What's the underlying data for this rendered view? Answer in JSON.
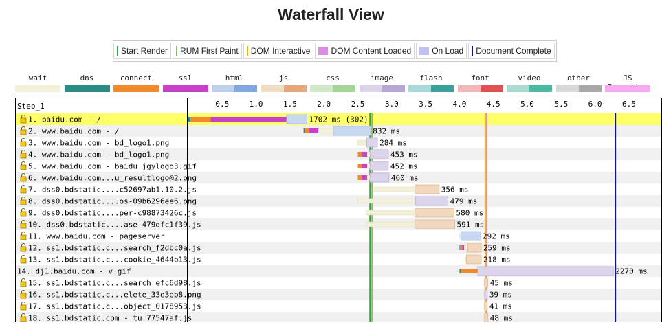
{
  "title": "Waterfall View",
  "milestone_legend": [
    {
      "label": "Start Render",
      "color": "#28a745",
      "shape": "line"
    },
    {
      "label": "RUM First Paint",
      "color": "#8fbc5f",
      "shape": "line"
    },
    {
      "label": "DOM Interactive",
      "color": "#f0b400",
      "shape": "line"
    },
    {
      "label": "DOM Content Loaded",
      "color": "#d98ee0",
      "shape": "box"
    },
    {
      "label": "On Load",
      "color": "#c0c0f5",
      "shape": "box"
    },
    {
      "label": "Document Complete",
      "color": "#1010a0",
      "shape": "line"
    }
  ],
  "type_legend": [
    {
      "label": "wait",
      "colors": [
        "#f2f0d8"
      ]
    },
    {
      "label": "dns",
      "colors": [
        "#2f8a88"
      ]
    },
    {
      "label": "connect",
      "colors": [
        "#f08a2c"
      ]
    },
    {
      "label": "ssl",
      "colors": [
        "#c842c8"
      ]
    },
    {
      "label": "html",
      "colors": [
        "#bcd0ee",
        "#7fa8e0"
      ]
    },
    {
      "label": "js",
      "colors": [
        "#f3dcc4",
        "#e6a878"
      ]
    },
    {
      "label": "css",
      "colors": [
        "#cfe8c6",
        "#a6d59a"
      ]
    },
    {
      "label": "image",
      "colors": [
        "#dcd4ea",
        "#b8a6d6"
      ]
    },
    {
      "label": "flash",
      "colors": [
        "#a8d8d8",
        "#3e9e9c"
      ]
    },
    {
      "label": "font",
      "colors": [
        "#f0b8b8",
        "#e05050"
      ]
    },
    {
      "label": "video",
      "colors": [
        "#a8dcd0",
        "#4cb8a0"
      ]
    },
    {
      "label": "other",
      "colors": [
        "#d8d8d8",
        "#a8a8a8"
      ]
    },
    {
      "label": "JS Execution",
      "colors": [
        "#f7a9f2"
      ]
    }
  ],
  "chart_data": {
    "type": "waterfall",
    "step_label": "Step_1",
    "x_unit": "s",
    "xlim": [
      0,
      6.95
    ],
    "x_ticks": [
      0.5,
      1.0,
      1.5,
      2.0,
      2.5,
      3.0,
      3.5,
      4.0,
      4.5,
      5.0,
      5.5,
      6.0,
      6.5
    ],
    "milestones": {
      "start_render": 2.68,
      "rum_first_paint": 2.71,
      "dom_interactive": 4.38,
      "dom_content_loaded": 4.4,
      "document_complete": 6.3
    },
    "requests": [
      {
        "label": "1. baidu.com - /",
        "lock": true,
        "highlight": true,
        "start": 0.0,
        "dns": 0.03,
        "connect": 0.3,
        "ssl": 1.12,
        "wait": 0.0,
        "download": 0.3,
        "kind": "html",
        "duration": "1702 ms (302)"
      },
      {
        "label": "2. www.baidu.com - /",
        "lock": true,
        "highlight": false,
        "start": 1.7,
        "dns": 0.02,
        "connect": 0.06,
        "ssl": 0.14,
        "wait": 0.22,
        "download": 0.55,
        "kind": "html",
        "duration": "832 ms"
      },
      {
        "label": "3. www.baidu.com - bd_logo1.png",
        "lock": true,
        "highlight": false,
        "start": 2.5,
        "dns": 0,
        "connect": 0,
        "ssl": 0,
        "wait": 0.13,
        "download": 0.16,
        "kind": "image",
        "duration": "284 ms"
      },
      {
        "label": "4. www.baidu.com - bd_logo1.png",
        "lock": true,
        "highlight": false,
        "start": 2.5,
        "dns": 0,
        "connect": 0.06,
        "ssl": 0.08,
        "wait": 0.04,
        "download": 0.27,
        "kind": "image",
        "duration": "453 ms"
      },
      {
        "label": "5. www.baidu.com - baidu_jgylogo3.gif",
        "lock": true,
        "highlight": false,
        "start": 2.5,
        "dns": 0,
        "connect": 0.06,
        "ssl": 0.08,
        "wait": 0.04,
        "download": 0.27,
        "kind": "image",
        "duration": "452 ms"
      },
      {
        "label": "6. www.baidu.com...u_resultlogo@2.png",
        "lock": true,
        "highlight": false,
        "start": 2.5,
        "dns": 0,
        "connect": 0.06,
        "ssl": 0.08,
        "wait": 0.04,
        "download": 0.28,
        "kind": "image",
        "duration": "460 ms"
      },
      {
        "label": "7. dss0.bdstatic....c52697ab1.10.2.js",
        "lock": true,
        "highlight": false,
        "start": 2.72,
        "dns": 0,
        "connect": 0,
        "ssl": 0,
        "wait": 0.62,
        "download": 0.36,
        "kind": "js",
        "duration": "356 ms"
      },
      {
        "label": "8. dss0.bdstatic....os-09b6296ee6.png",
        "lock": true,
        "highlight": false,
        "start": 2.5,
        "dns": 0,
        "connect": 0,
        "ssl": 0,
        "wait": 0.85,
        "download": 0.48,
        "kind": "image",
        "duration": "479 ms"
      },
      {
        "label": "9. dss0.bdstatic....per-c98873426c.js",
        "lock": true,
        "highlight": false,
        "start": 2.62,
        "dns": 0,
        "connect": 0,
        "ssl": 0,
        "wait": 0.72,
        "download": 0.58,
        "kind": "js",
        "duration": "580 ms"
      },
      {
        "label": "10. dss0.bdstatic....ase-479dfc1f39.js",
        "lock": true,
        "highlight": false,
        "start": 2.62,
        "dns": 0,
        "connect": 0,
        "ssl": 0,
        "wait": 0.72,
        "download": 0.59,
        "kind": "js",
        "duration": "591 ms"
      },
      {
        "label": "11. www.baidu.com - pageserver",
        "lock": true,
        "highlight": false,
        "start": 4.0,
        "dns": 0,
        "connect": 0,
        "ssl": 0,
        "wait": 0.02,
        "download": 0.29,
        "kind": "html",
        "duration": "292 ms"
      },
      {
        "label": "12. ss1.bdstatic.c...search_f2dbc0a.js",
        "lock": true,
        "highlight": false,
        "start": 4.0,
        "dns": 0.01,
        "connect": 0.03,
        "ssl": 0.03,
        "wait": 0.05,
        "download": 0.2,
        "kind": "js",
        "duration": "259 ms"
      },
      {
        "label": "13. ss1.bdstatic.c...cookie_4644b13.js",
        "lock": true,
        "highlight": false,
        "start": 4.08,
        "dns": 0,
        "connect": 0,
        "ssl": 0,
        "wait": 0.02,
        "download": 0.22,
        "kind": "js",
        "duration": "218 ms"
      },
      {
        "label": "14. dj1.baidu.com - v.gif",
        "lock": false,
        "highlight": false,
        "start": 4.0,
        "dns": 0.02,
        "connect": 0.25,
        "ssl": 0,
        "wait": 0.0,
        "download": 2.0,
        "kind": "image",
        "duration": "2270 ms"
      },
      {
        "label": "15. ss1.bdstatic.c...search_efc6d98.js",
        "lock": true,
        "highlight": false,
        "start": 4.36,
        "dns": 0,
        "connect": 0,
        "ssl": 0,
        "wait": 0.01,
        "download": 0.05,
        "kind": "js",
        "duration": "45 ms"
      },
      {
        "label": "16. ss1.bdstatic.c...elete_33e3eb8.png",
        "lock": true,
        "highlight": false,
        "start": 4.36,
        "dns": 0,
        "connect": 0,
        "ssl": 0,
        "wait": 0.01,
        "download": 0.04,
        "kind": "image",
        "duration": "39 ms"
      },
      {
        "label": "17. ss1.bdstatic.c...object_0178953.js",
        "lock": true,
        "highlight": false,
        "start": 4.36,
        "dns": 0,
        "connect": 0,
        "ssl": 0,
        "wait": 0.01,
        "download": 0.04,
        "kind": "js",
        "duration": "41 ms"
      },
      {
        "label": "18. ss1.bdstatic.com - tu 77547af.js",
        "lock": true,
        "highlight": false,
        "start": 4.36,
        "dns": 0,
        "connect": 0,
        "ssl": 0,
        "wait": 0.01,
        "download": 0.05,
        "kind": "js",
        "duration": "48 ms"
      }
    ]
  }
}
